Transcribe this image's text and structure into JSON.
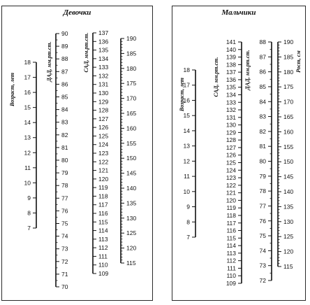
{
  "girls": {
    "title": "Девочки",
    "scales": [
      {
        "key": "age",
        "label": "Возраст, лет",
        "min": 7,
        "max": 18,
        "step": 1,
        "labels": [
          "7",
          "8",
          "9",
          "10",
          "11",
          "12",
          "13",
          "14",
          "15",
          "16",
          "17",
          "18"
        ]
      },
      {
        "key": "dad",
        "label": "ДАД, мм.рт.ст.",
        "min": 70,
        "max": 90,
        "step": 1,
        "labels": [
          "70",
          "71",
          "72",
          "73",
          "74",
          "75",
          "76",
          "77",
          "78",
          "79",
          "80",
          "81",
          "82",
          "83",
          "84",
          "85",
          "86",
          "87",
          "88",
          "89",
          "90"
        ]
      },
      {
        "key": "sad",
        "label": "САД, мм.рт.ст.",
        "min": 109,
        "max": 137,
        "step": 1,
        "labels": [
          "109",
          "110",
          "111",
          "112",
          "113",
          "114",
          "115",
          "116",
          "117",
          "118",
          "119",
          "120",
          "121",
          "122",
          "123",
          "124",
          "125",
          "126",
          "127",
          "128",
          "129",
          "130",
          "131",
          "132",
          "133",
          "134",
          "135",
          "136",
          "137"
        ]
      },
      {
        "key": "height",
        "label": "",
        "min": 115,
        "max": 190,
        "step": 5,
        "labels": [
          "115",
          "120",
          "125",
          "130",
          "135",
          "140",
          "145",
          "150",
          "155",
          "160",
          "165",
          "170",
          "175",
          "180",
          "185",
          "190"
        ]
      }
    ]
  },
  "boys": {
    "title": "Мальчики",
    "scales": [
      {
        "key": "age",
        "label": "Возраст, лет",
        "min": 7,
        "max": 18,
        "step": 1,
        "labels": [
          "7",
          "8",
          "9",
          "10",
          "11",
          "12",
          "13",
          "14",
          "15",
          "16",
          "17",
          "18"
        ]
      },
      {
        "key": "sad",
        "label": "САД, мм.рт.ст.",
        "min": 109,
        "max": 141,
        "step": 1,
        "labels": [
          "109",
          "110",
          "111",
          "112",
          "113",
          "114",
          "115",
          "116",
          "117",
          "118",
          "119",
          "120",
          "121",
          "122",
          "123",
          "124",
          "125",
          "126",
          "127",
          "128",
          "129",
          "130",
          "131",
          "132",
          "133",
          "134",
          "135",
          "136",
          "137",
          "138",
          "139",
          "140",
          "141"
        ]
      },
      {
        "key": "dad",
        "label": "ДАД, мм.рт.ст.",
        "min": 72,
        "max": 88,
        "step": 1,
        "labels": [
          "72",
          "73",
          "74",
          "75",
          "76",
          "77",
          "78",
          "79",
          "80",
          "81",
          "82",
          "83",
          "84",
          "85",
          "86",
          "87",
          "88"
        ]
      },
      {
        "key": "height",
        "label": "Рост, см",
        "min": 115,
        "max": 190,
        "step": 5,
        "labels": [
          "115",
          "120",
          "125",
          "130",
          "135",
          "140",
          "145",
          "150",
          "155",
          "160",
          "165",
          "170",
          "175",
          "180",
          "185",
          "190"
        ]
      }
    ]
  }
}
